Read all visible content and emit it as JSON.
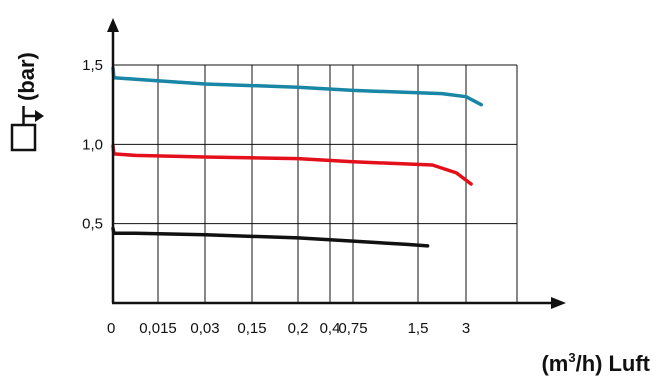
{
  "chart_data": {
    "type": "line",
    "title": "",
    "xlabel": "Luft",
    "xunit_base": "(m",
    "xunit_sup": "3",
    "xunit_rest": "/h)",
    "ylabel": "(bar)",
    "x_ticks": [
      "0",
      "0,015",
      "0,03",
      "0,15",
      "0,2",
      "0,4",
      "0,75",
      "1,5",
      "3"
    ],
    "y_ticks": [
      "0,5",
      "1,0",
      "1,5"
    ],
    "ylim": [
      0,
      1.5
    ],
    "grid": true,
    "series": [
      {
        "color": "#1a86a6",
        "points": [
          [
            0,
            1.48
          ],
          [
            0.02,
            1.42
          ],
          [
            0.5,
            1.41
          ],
          [
            2,
            1.38
          ],
          [
            4,
            1.36
          ],
          [
            6,
            1.34
          ],
          [
            7.5,
            1.32
          ],
          [
            8.0,
            1.3
          ],
          [
            8.3,
            1.25
          ]
        ]
      },
      {
        "color": "#e3101c",
        "points": [
          [
            0,
            0.99
          ],
          [
            0.02,
            0.94
          ],
          [
            0.5,
            0.93
          ],
          [
            2,
            0.92
          ],
          [
            4,
            0.91
          ],
          [
            6,
            0.89
          ],
          [
            7.3,
            0.87
          ],
          [
            7.8,
            0.82
          ],
          [
            8.1,
            0.75
          ]
        ]
      },
      {
        "color": "#111111",
        "points": [
          [
            0,
            0.47
          ],
          [
            0.02,
            0.44
          ],
          [
            0.5,
            0.44
          ],
          [
            2,
            0.43
          ],
          [
            4,
            0.41
          ],
          [
            6,
            0.39
          ],
          [
            6.8,
            0.37
          ],
          [
            7.2,
            0.36
          ]
        ]
      }
    ]
  },
  "colors": {
    "axis": "#111111",
    "grid": "#111111"
  },
  "icons": {
    "pressure_outlet": "pressure-outlet-icon"
  }
}
